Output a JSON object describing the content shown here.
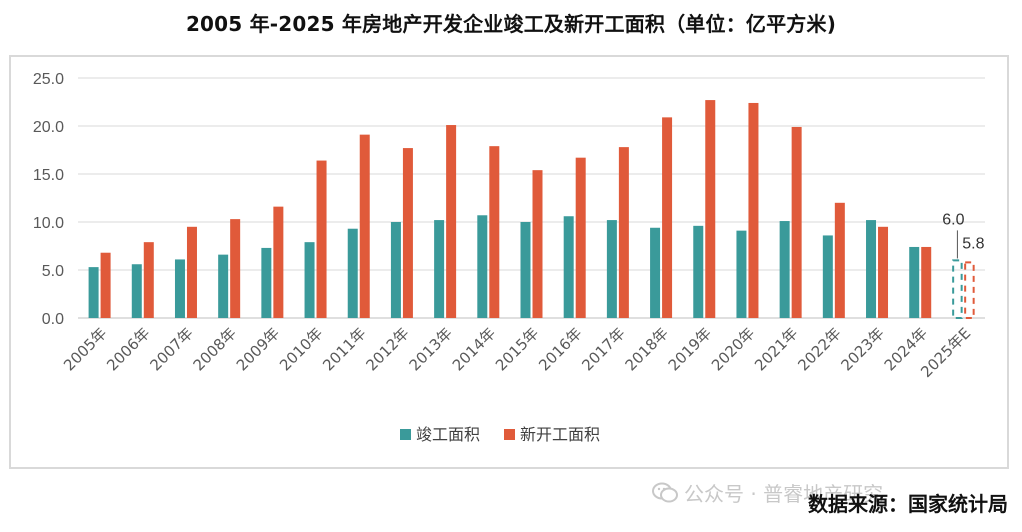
{
  "title": "2005 年-2025 年房地产开发企业竣工及新开工面积（单位：亿平方米)",
  "source": "数据来源：国家统计局",
  "watermark": "公众号 · 普睿地产研究",
  "colors": {
    "completed": "#3a9a9a",
    "started": "#e05a3a",
    "grid": "#d9d9d9",
    "axis": "#bfbfbf"
  },
  "chart_data": {
    "type": "bar",
    "title": "2005 年-2025 年房地产开发企业竣工及新开工面积（单位：亿平方米)",
    "categories": [
      "2005年",
      "2006年",
      "2007年",
      "2008年",
      "2009年",
      "2010年",
      "2011年",
      "2012年",
      "2013年",
      "2014年",
      "2015年",
      "2016年",
      "2017年",
      "2018年",
      "2019年",
      "2020年",
      "2021年",
      "2022年",
      "2023年",
      "2024年",
      "2025年E"
    ],
    "series": [
      {
        "name": "竣工面积",
        "values": [
          5.3,
          5.6,
          6.1,
          6.6,
          7.3,
          7.9,
          9.3,
          10.0,
          10.2,
          10.7,
          10.0,
          10.6,
          10.2,
          9.4,
          9.6,
          9.1,
          10.1,
          8.6,
          10.2,
          7.4,
          6.0
        ]
      },
      {
        "name": "新开工面积",
        "values": [
          6.8,
          7.9,
          9.5,
          10.3,
          11.6,
          16.4,
          19.1,
          17.7,
          20.1,
          17.9,
          15.4,
          16.7,
          17.8,
          20.9,
          22.7,
          22.4,
          19.9,
          12.0,
          9.5,
          7.4,
          5.8
        ]
      }
    ],
    "estimated_index": 20,
    "data_labels": [
      {
        "series": "竣工面积",
        "category": "2025年E",
        "text": "6.0"
      },
      {
        "series": "新开工面积",
        "category": "2025年E",
        "text": "5.8"
      }
    ],
    "ylim": [
      0,
      25
    ],
    "yticks": [
      "0.0",
      "5.0",
      "10.0",
      "15.0",
      "20.0",
      "25.0"
    ],
    "ytick_values": [
      0,
      5,
      10,
      15,
      20,
      25
    ],
    "xlabel": "",
    "ylabel": "",
    "grid": true,
    "legend_position": "bottom-center"
  }
}
